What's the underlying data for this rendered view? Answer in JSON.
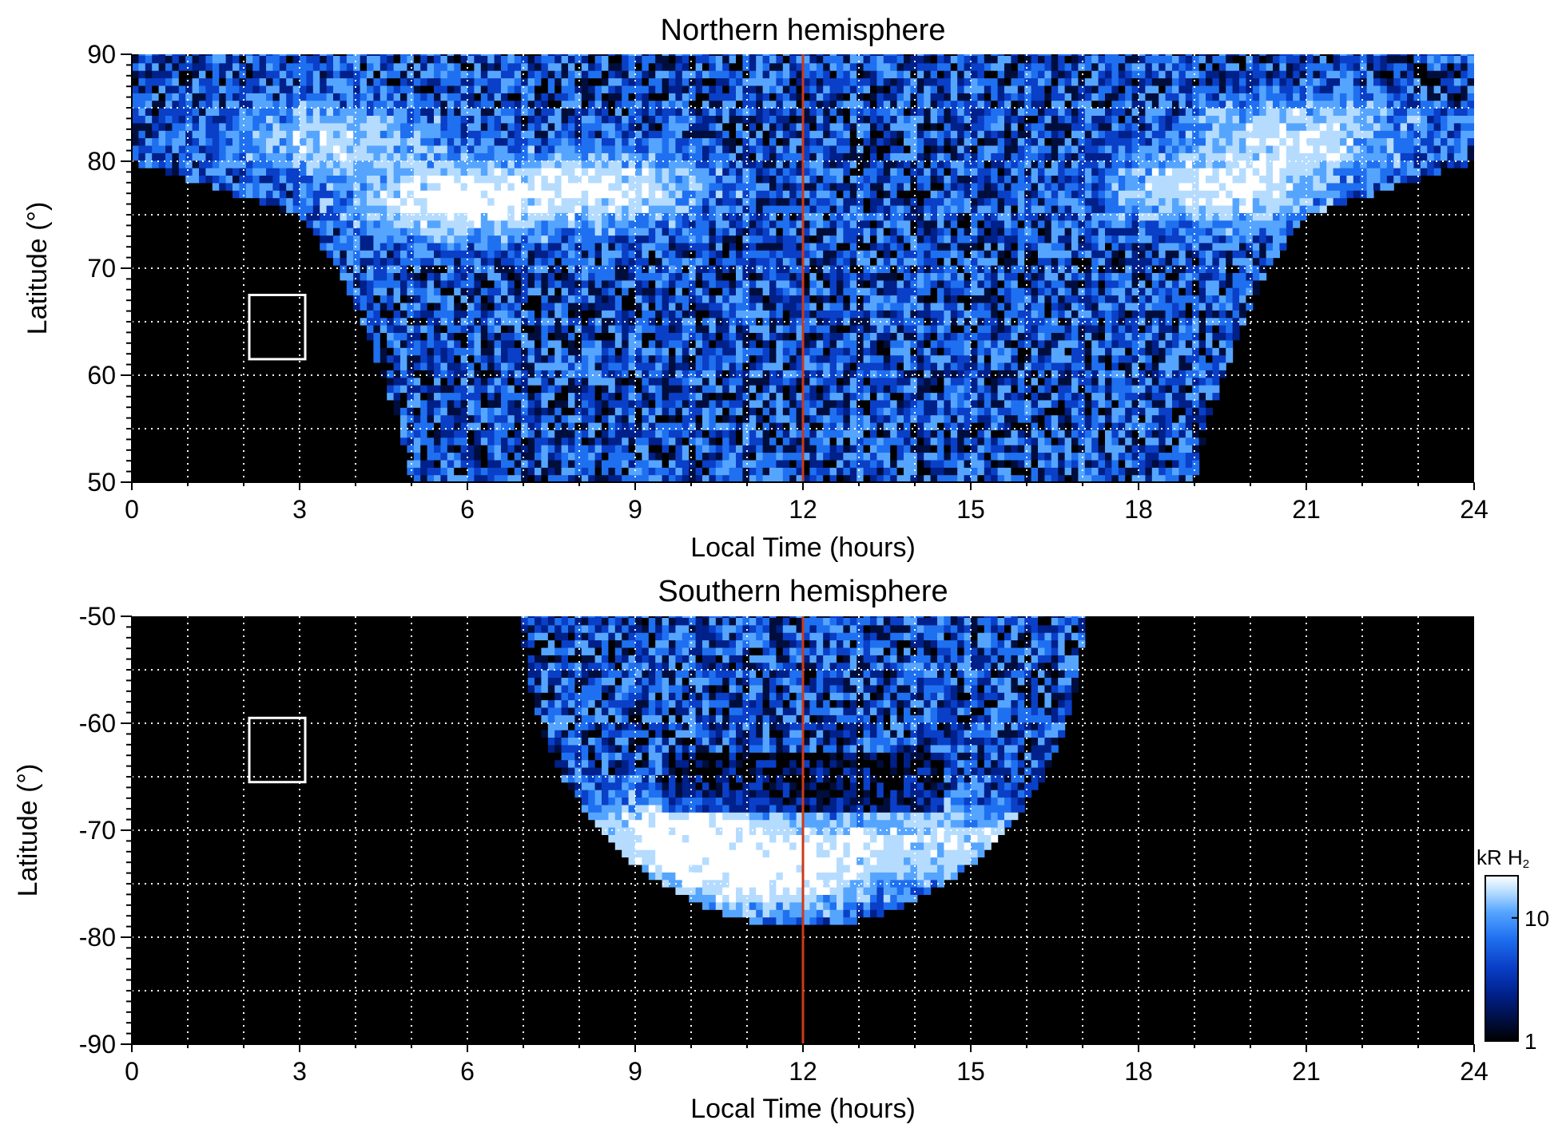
{
  "chart_data": [
    {
      "type": "heatmap",
      "title": "Northern hemisphere",
      "xlabel": "Local Time (hours)",
      "ylabel": "Latitude (°)",
      "xlim": [
        0,
        24
      ],
      "ylim": [
        50,
        90
      ],
      "xticks": [
        0,
        3,
        6,
        9,
        12,
        15,
        18,
        21,
        24
      ],
      "yticks": [
        50,
        60,
        70,
        80,
        90
      ],
      "grid": true,
      "grid_x_step": 1,
      "grid_y_step": 5,
      "grid_style": "dotted white",
      "vertical_line": {
        "x": 12,
        "color": "#cc3a1a"
      },
      "marker_box": {
        "x": [
          2.1,
          3.1
        ],
        "y": [
          61.5,
          67.5
        ],
        "color": "#ffffff"
      },
      "coverage": {
        "edge_points_lt": [
          5.0,
          6.0,
          7.0,
          9.0,
          12.0,
          15.0,
          17.0,
          18.5,
          19.0
        ],
        "left_edge_lt": [
          [
            50,
            5.0
          ],
          [
            55,
            4.8
          ],
          [
            60,
            4.5
          ],
          [
            65,
            4.1
          ],
          [
            70,
            3.7
          ],
          [
            75,
            3.0
          ],
          [
            80,
            0.0
          ]
        ],
        "right_edge_lt": [
          [
            50,
            19.0
          ],
          [
            55,
            19.2
          ],
          [
            60,
            19.5
          ],
          [
            65,
            19.9
          ],
          [
            70,
            20.3
          ],
          [
            75,
            21.0
          ],
          [
            80,
            24.0
          ]
        ],
        "bright_regions": [
          {
            "lt": 5.8,
            "lat": 76.5,
            "level": 22
          },
          {
            "lt": 8.5,
            "lat": 77.5,
            "level": 16
          },
          {
            "lt": 19.5,
            "lat": 77.5,
            "level": 18
          },
          {
            "lt": 21.0,
            "lat": 82.5,
            "level": 15
          },
          {
            "lt": 3.5,
            "lat": 82.0,
            "level": 12
          }
        ]
      }
    },
    {
      "type": "heatmap",
      "title": "Southern hemisphere",
      "xlabel": "Local Time (hours)",
      "ylabel": "Latitude (°)",
      "xlim": [
        0,
        24
      ],
      "ylim": [
        -90,
        -50
      ],
      "xticks": [
        0,
        3,
        6,
        9,
        12,
        15,
        18,
        21,
        24
      ],
      "yticks": [
        -90,
        -80,
        -70,
        -60,
        -50
      ],
      "grid": true,
      "grid_x_step": 1,
      "grid_y_step": 5,
      "grid_style": "dotted white",
      "vertical_line": {
        "x": 12,
        "color": "#cc3a1a"
      },
      "marker_box": {
        "x": [
          2.1,
          3.1
        ],
        "y": [
          -65.5,
          -59.5
        ],
        "color": "#ffffff"
      },
      "coverage": {
        "center_lt": 12.0,
        "half_width_lt_at_top": 5.0,
        "lowest_lat": -79,
        "bright_regions": [
          {
            "lt": 9.8,
            "lat": -70.5,
            "level": 22
          },
          {
            "lt": 11.2,
            "lat": -74.5,
            "level": 18
          },
          {
            "lt": 14.8,
            "lat": -71.0,
            "level": 12
          },
          {
            "lt": 12.5,
            "lat": -72.0,
            "level": 10
          }
        ]
      }
    }
  ],
  "colorbar": {
    "label_main": "kR H",
    "label_sub": "2",
    "ticks": [
      1,
      10
    ],
    "tick_labels": [
      "1",
      "10"
    ],
    "range": [
      1,
      22
    ],
    "scale": "log",
    "colors": [
      "#000000",
      "#000e3d",
      "#00208a",
      "#0a3fc8",
      "#1f70f0",
      "#55a5ff",
      "#b5dcff",
      "#ffffff"
    ]
  }
}
